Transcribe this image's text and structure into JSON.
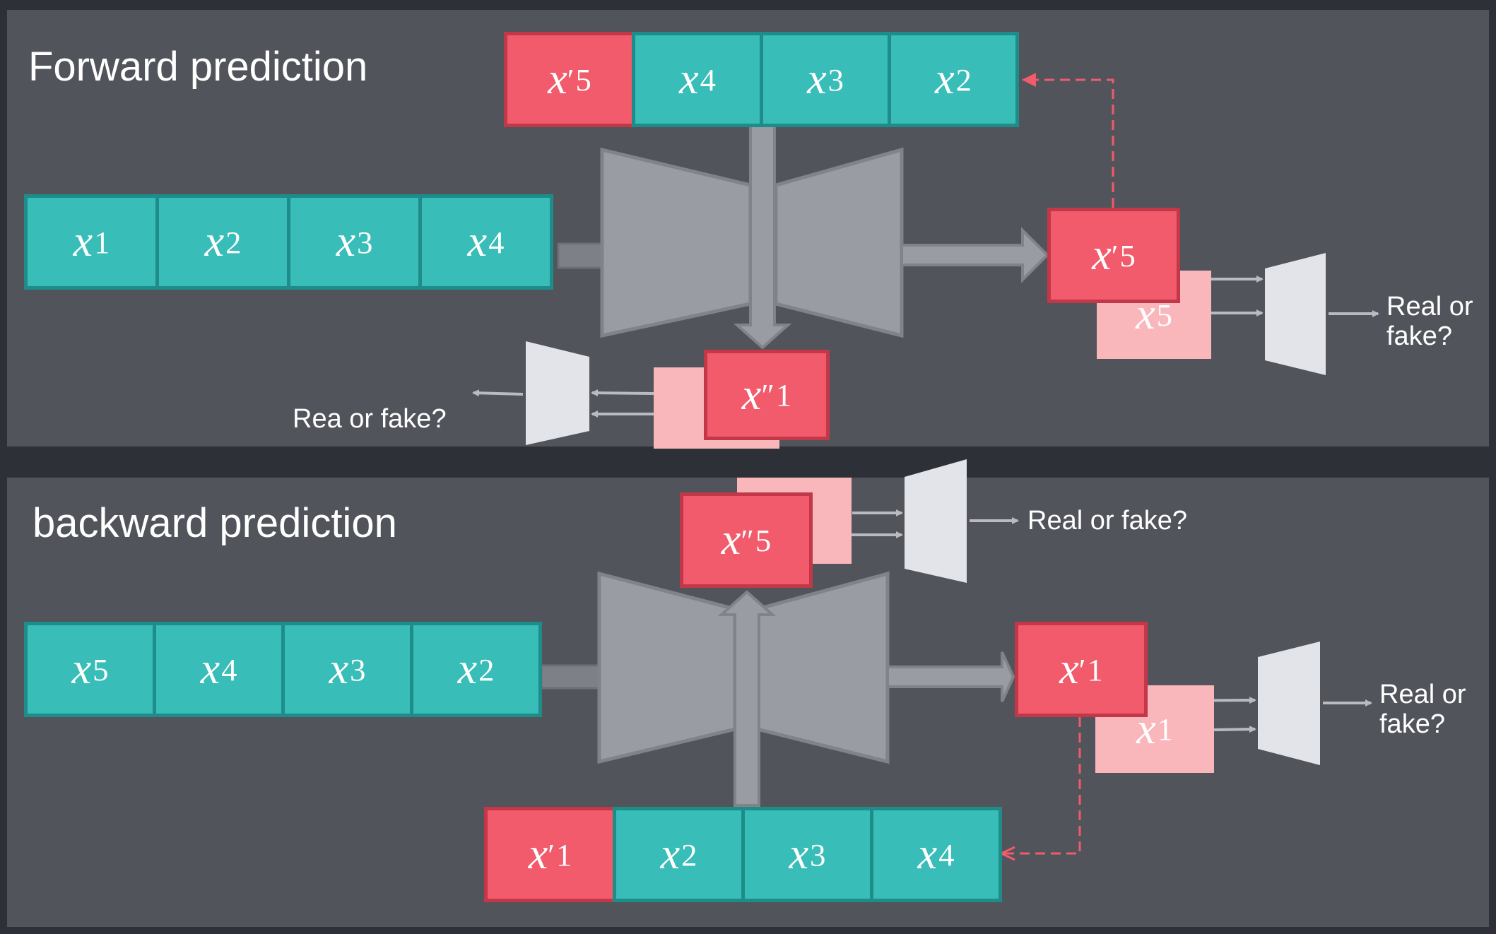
{
  "panels": {
    "forward": {
      "title": "Forward prediction"
    },
    "backward": {
      "title": "backward prediction"
    }
  },
  "forward": {
    "input_sequence": [
      {
        "var": "x",
        "sub": "1",
        "prime": ""
      },
      {
        "var": "x",
        "sub": "2",
        "prime": ""
      },
      {
        "var": "x",
        "sub": "3",
        "prime": ""
      },
      {
        "var": "x",
        "sub": "4",
        "prime": ""
      }
    ],
    "top_sequence": [
      {
        "var": "x",
        "sub": "5",
        "prime": "′",
        "highlight": true
      },
      {
        "var": "x",
        "sub": "4",
        "prime": ""
      },
      {
        "var": "x",
        "sub": "3",
        "prime": ""
      },
      {
        "var": "x",
        "sub": "2",
        "prime": ""
      }
    ],
    "prediction": {
      "var": "x",
      "sub": "5",
      "prime": "′"
    },
    "ground_truth": {
      "var": "x",
      "sub": "5",
      "prime": ""
    },
    "reconstruction": {
      "var": "x",
      "sub": "1",
      "prime": "″"
    },
    "discriminator_right_label": "Real or\nfake?",
    "discriminator_left_label": "Rea or fake?"
  },
  "backward": {
    "input_sequence": [
      {
        "var": "x",
        "sub": "5",
        "prime": ""
      },
      {
        "var": "x",
        "sub": "4",
        "prime": ""
      },
      {
        "var": "x",
        "sub": "3",
        "prime": ""
      },
      {
        "var": "x",
        "sub": "2",
        "prime": ""
      }
    ],
    "bottom_sequence": [
      {
        "var": "x",
        "sub": "1",
        "prime": "′",
        "highlight": true
      },
      {
        "var": "x",
        "sub": "2",
        "prime": ""
      },
      {
        "var": "x",
        "sub": "3",
        "prime": ""
      },
      {
        "var": "x",
        "sub": "4",
        "prime": ""
      }
    ],
    "prediction": {
      "var": "x",
      "sub": "1",
      "prime": "′"
    },
    "ground_truth": {
      "var": "x",
      "sub": "1",
      "prime": ""
    },
    "reconstruction": {
      "var": "x",
      "sub": "5",
      "prime": "″"
    },
    "discriminator_top_label": "Real or fake?",
    "discriminator_right_label": "Real or\nfake?"
  },
  "colors": {
    "teal": "#38bdb8",
    "red": "#f15b6b",
    "pink": "#f9b6bb",
    "network_gray": "#999ca3",
    "discriminator": "#e3e4ea",
    "dashed_arrow": "#f15b6b"
  }
}
